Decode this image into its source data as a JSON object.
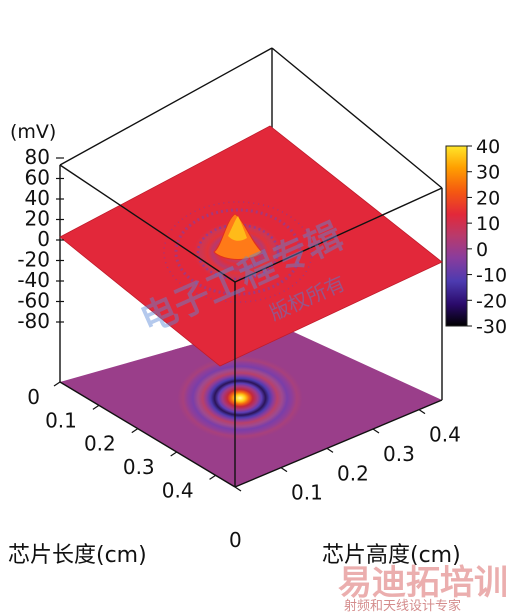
{
  "chart_data": {
    "type": "surface3d",
    "z_unit_label": "(mV)",
    "z_ticks": [
      "80",
      "60",
      "40",
      "20",
      "0",
      "-20",
      "-40",
      "-60",
      "-80"
    ],
    "x_ticks": [
      "0",
      "0.1",
      "0.2",
      "0.3",
      "0.4"
    ],
    "y_ticks": [
      "0",
      "0.1",
      "0.2",
      "0.3",
      "0.4"
    ],
    "x_axis_label": "芯片长度(cm)",
    "y_axis_label": "芯片高度(cm)",
    "colorbar_ticks": [
      "40",
      "30",
      "20",
      "10",
      "0",
      "-10",
      "-20",
      "-30"
    ],
    "colorbar_range": [
      -30,
      40
    ],
    "x_range": [
      0,
      0.45
    ],
    "y_range": [
      0,
      0.45
    ],
    "z_range": [
      -80,
      80
    ],
    "peak": {
      "x": 0.225,
      "y": 0.225,
      "value": 40
    },
    "baseline_value": 10,
    "colormap": [
      "#000000",
      "#2a0a6a",
      "#4d3bb0",
      "#8a3c9c",
      "#b83a6c",
      "#e2283a",
      "#f55a10",
      "#ff9f00",
      "#ffe62a",
      "#ffff90"
    ]
  },
  "watermark": {
    "main": "电子工程专辑",
    "sub": "版权所有"
  },
  "logo": {
    "main": "易迪拓培训",
    "sub": "射频和天线设计专家"
  }
}
